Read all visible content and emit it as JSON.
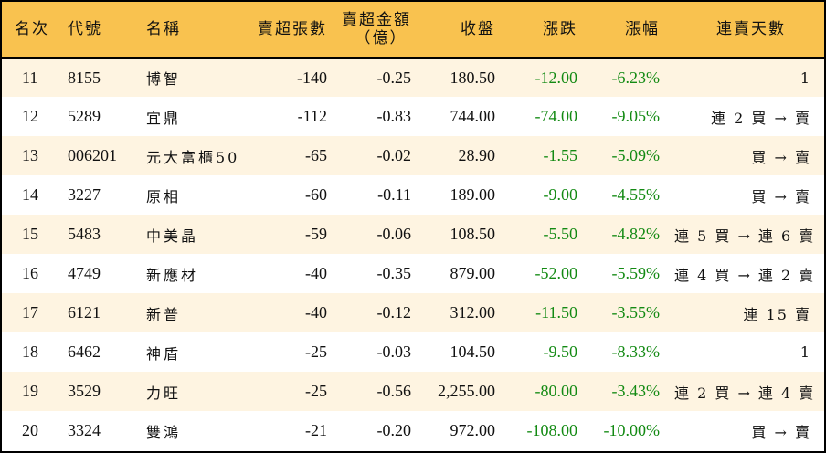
{
  "table": {
    "headers": {
      "rank": "名次",
      "code": "代號",
      "name": "名稱",
      "net_sell_lots": "賣超張數",
      "net_sell_amount_line1": "賣超金額",
      "net_sell_amount_line2": "（億）",
      "close": "收盤",
      "change": "漲跌",
      "change_pct": "漲幅",
      "streak": "連賣天數"
    },
    "rows": [
      {
        "rank": "11",
        "code": "8155",
        "name": "博智",
        "net_sell_lots": "-140",
        "net_sell_amount": "-0.25",
        "close": "180.50",
        "change": "-12.00",
        "change_pct": "-6.23%",
        "streak": "1"
      },
      {
        "rank": "12",
        "code": "5289",
        "name": "宜鼎",
        "net_sell_lots": "-112",
        "net_sell_amount": "-0.83",
        "close": "744.00",
        "change": "-74.00",
        "change_pct": "-9.05%",
        "streak": "連 2 買 → 賣"
      },
      {
        "rank": "13",
        "code": "006201",
        "name": "元大富櫃50",
        "net_sell_lots": "-65",
        "net_sell_amount": "-0.02",
        "close": "28.90",
        "change": "-1.55",
        "change_pct": "-5.09%",
        "streak": "買 → 賣"
      },
      {
        "rank": "14",
        "code": "3227",
        "name": "原相",
        "net_sell_lots": "-60",
        "net_sell_amount": "-0.11",
        "close": "189.00",
        "change": "-9.00",
        "change_pct": "-4.55%",
        "streak": "買 → 賣"
      },
      {
        "rank": "15",
        "code": "5483",
        "name": "中美晶",
        "net_sell_lots": "-59",
        "net_sell_amount": "-0.06",
        "close": "108.50",
        "change": "-5.50",
        "change_pct": "-4.82%",
        "streak": "連 5 買 → 連 6 賣"
      },
      {
        "rank": "16",
        "code": "4749",
        "name": "新應材",
        "net_sell_lots": "-40",
        "net_sell_amount": "-0.35",
        "close": "879.00",
        "change": "-52.00",
        "change_pct": "-5.59%",
        "streak": "連 4 買 → 連 2 賣"
      },
      {
        "rank": "17",
        "code": "6121",
        "name": "新普",
        "net_sell_lots": "-40",
        "net_sell_amount": "-0.12",
        "close": "312.00",
        "change": "-11.50",
        "change_pct": "-3.55%",
        "streak": "連 15 賣"
      },
      {
        "rank": "18",
        "code": "6462",
        "name": "神盾",
        "net_sell_lots": "-25",
        "net_sell_amount": "-0.03",
        "close": "104.50",
        "change": "-9.50",
        "change_pct": "-8.33%",
        "streak": "1"
      },
      {
        "rank": "19",
        "code": "3529",
        "name": "力旺",
        "net_sell_lots": "-25",
        "net_sell_amount": "-0.56",
        "close": "2,255.00",
        "change": "-80.00",
        "change_pct": "-3.43%",
        "streak": "連 2 買 → 連 4 賣"
      },
      {
        "rank": "20",
        "code": "3324",
        "name": "雙鴻",
        "net_sell_lots": "-21",
        "net_sell_amount": "-0.20",
        "close": "972.00",
        "change": "-108.00",
        "change_pct": "-10.00%",
        "streak": "買 → 賣"
      }
    ]
  },
  "colors": {
    "header_bg": "#F9C24F",
    "row_alt_bg": "#FEF4E1",
    "row_bg": "#FFFFFF",
    "down_text": "#138A13",
    "border": "#000000"
  }
}
